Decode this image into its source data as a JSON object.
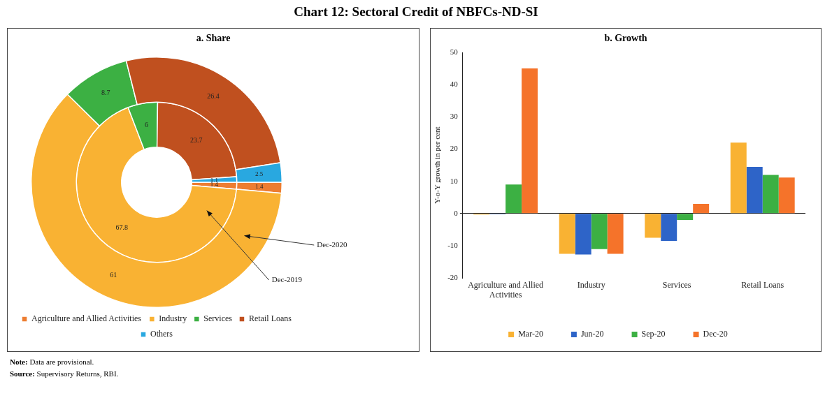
{
  "chart_data": [
    {
      "type": "donut",
      "title": "Chart 12: Sectoral Credit of NBFCs-ND-SI",
      "subtitle": "a. Share",
      "categories": [
        "Agriculture and Allied Activities",
        "Industry",
        "Services",
        "Retail Loans",
        "Others"
      ],
      "colors": [
        "#ed7d31",
        "#f9b233",
        "#3cb043",
        "#c0501f",
        "#29a8e0"
      ],
      "series": [
        {
          "name": "Dec-2019",
          "values": [
            1.4,
            67.8,
            6.0,
            23.7,
            1.1
          ]
        },
        {
          "name": "Dec-2020",
          "values": [
            1.4,
            61.0,
            8.7,
            26.4,
            2.5
          ]
        }
      ],
      "data_labels": true,
      "legend": "bottom",
      "annotations": [
        "Note: Data are provisional.",
        "Source: Supervisory Returns, RBI."
      ]
    },
    {
      "type": "bar",
      "title": "b.  Growth",
      "ylabel": "Y-o-Y growth in per cent",
      "categories": [
        "Agriculture and Allied Activities",
        "Industry",
        "Services",
        "Retail Loans"
      ],
      "series": [
        {
          "name": "Mar-20",
          "color": "#f9b233",
          "values": [
            -0.3,
            -12.5,
            -7.5,
            22.0
          ]
        },
        {
          "name": "Jun-20",
          "color": "#2e64c8",
          "values": [
            -0.2,
            -12.7,
            -8.5,
            14.5
          ]
        },
        {
          "name": "Sep-20",
          "color": "#3cb043",
          "values": [
            9.0,
            -11.0,
            -2.0,
            12.0
          ]
        },
        {
          "name": "Dec-20",
          "color": "#f5732a",
          "values": [
            45.0,
            -12.5,
            3.0,
            11.2
          ]
        }
      ],
      "ylim": [
        -20,
        50
      ],
      "yticks": [
        -20,
        -10,
        0,
        10,
        20,
        30,
        40,
        50
      ],
      "legend": "bottom"
    }
  ]
}
